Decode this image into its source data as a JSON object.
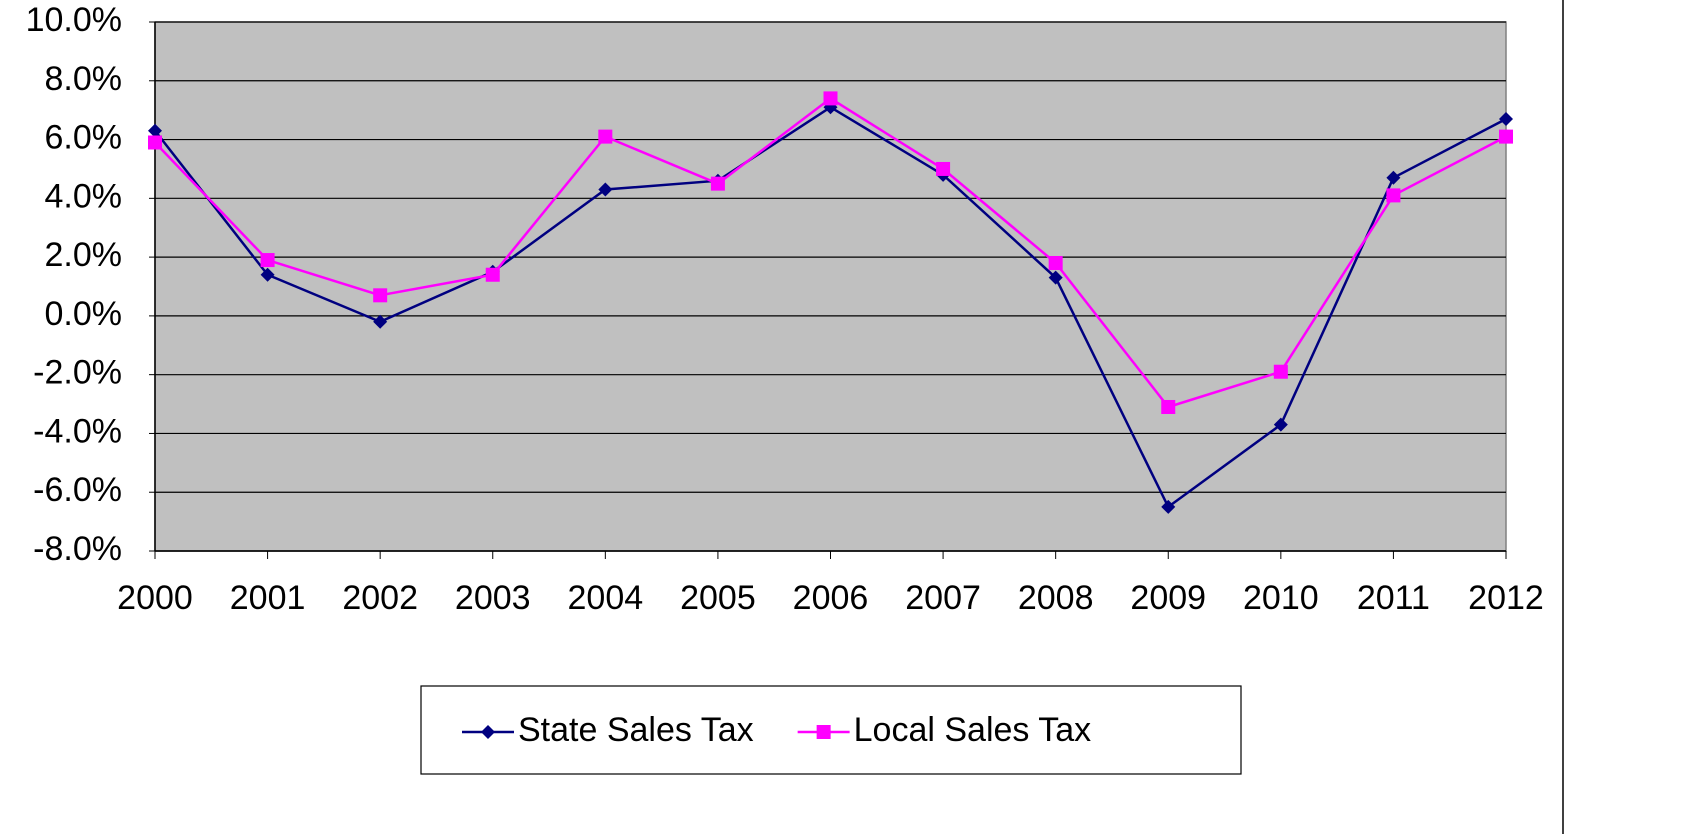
{
  "chart_data": {
    "type": "line",
    "categories": [
      "2000",
      "2001",
      "2002",
      "2003",
      "2004",
      "2005",
      "2006",
      "2007",
      "2008",
      "2009",
      "2010",
      "2011",
      "2012"
    ],
    "series": [
      {
        "name": "State Sales Tax",
        "color": "#000080",
        "marker": "diamond",
        "values": [
          6.3,
          1.4,
          -0.2,
          1.5,
          4.3,
          4.6,
          7.1,
          4.8,
          1.3,
          -6.5,
          -3.7,
          4.7,
          6.7
        ]
      },
      {
        "name": "Local Sales Tax",
        "color": "#ff00ff",
        "marker": "square",
        "values": [
          5.9,
          1.9,
          0.7,
          1.4,
          6.1,
          4.5,
          7.4,
          5.0,
          1.8,
          -3.1,
          -1.9,
          4.1,
          6.1
        ]
      }
    ],
    "ylim": [
      -8,
      10
    ],
    "yticks": [
      {
        "value": -8,
        "label": "-8.0%"
      },
      {
        "value": -6,
        "label": "-6.0%"
      },
      {
        "value": -4,
        "label": "-4.0%"
      },
      {
        "value": -2,
        "label": "-2.0%"
      },
      {
        "value": 0,
        "label": "0.0%"
      },
      {
        "value": 2,
        "label": "2.0%"
      },
      {
        "value": 4,
        "label": "4.0%"
      },
      {
        "value": 6,
        "label": "6.0%"
      },
      {
        "value": 8,
        "label": "8.0%"
      },
      {
        "value": 10,
        "label": "10.0%"
      }
    ],
    "grid": true,
    "plot_background": "#c0c0c0",
    "legend": "bottom"
  }
}
